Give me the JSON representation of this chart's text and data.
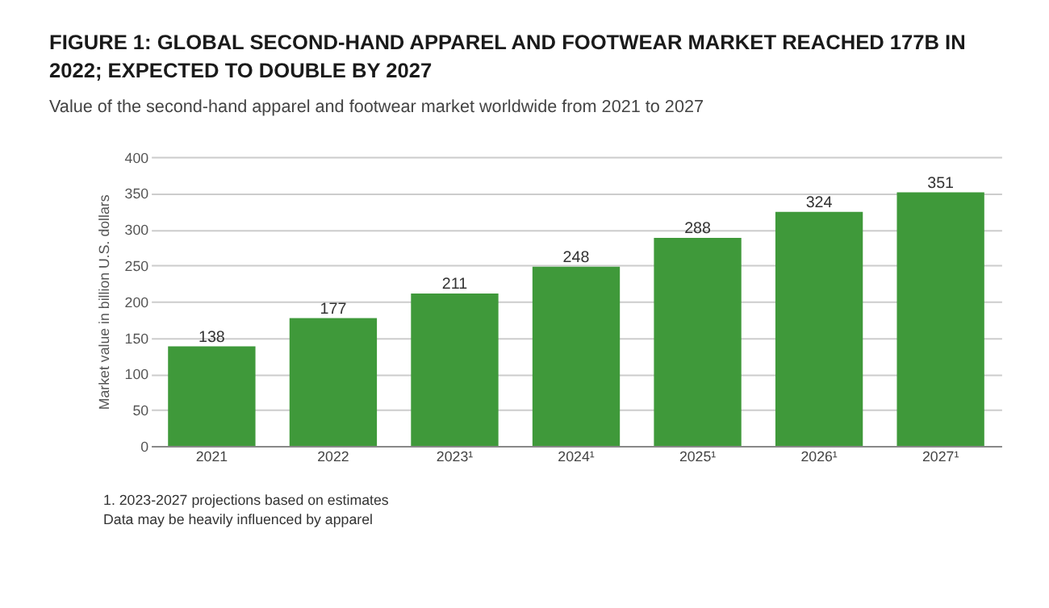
{
  "chart_data": {
    "type": "bar",
    "title": "FIGURE 1: GLOBAL SECOND-HAND APPAREL AND FOOTWEAR MARKET REACHED 177B IN 2022; EXPECTED TO DOUBLE BY 2027",
    "subtitle": "Value of the second-hand apparel and footwear market worldwide from 2021 to 2027",
    "ylabel": "Market value in billion U.S. dollars",
    "categories": [
      "2021",
      "2022",
      "2023¹",
      "2024¹",
      "2025¹",
      "2026¹",
      "2027¹"
    ],
    "values": [
      138,
      177,
      211,
      248,
      288,
      324,
      351
    ],
    "color": "#3f993a",
    "ylim": [
      0,
      400
    ],
    "yticks": [
      0,
      50,
      100,
      150,
      200,
      250,
      300,
      350,
      400
    ],
    "grid": "y",
    "data_labels": true,
    "annotations": [
      "1. 2023-2027 projections based on estimates",
      "Data may be heavily influenced by apparel"
    ]
  }
}
